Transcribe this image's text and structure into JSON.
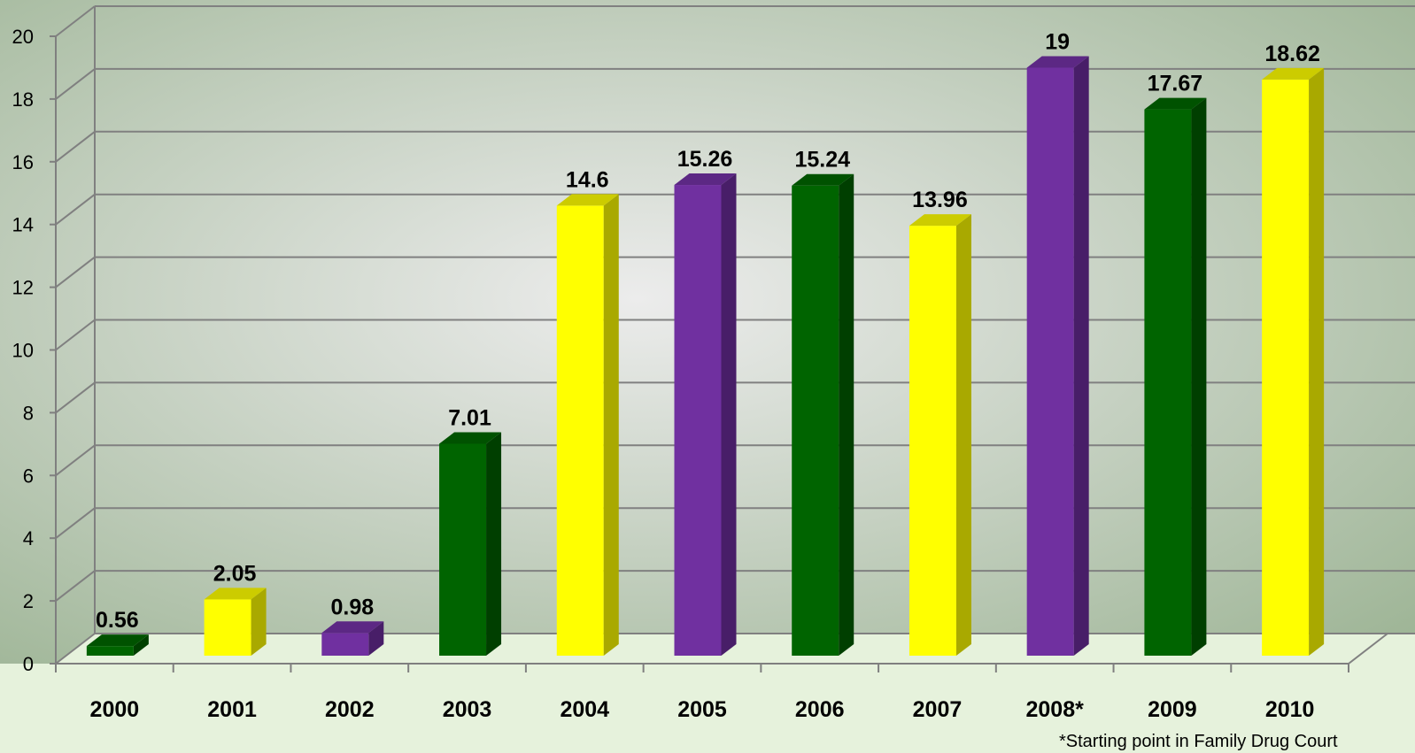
{
  "chart_data": {
    "type": "bar",
    "title": "",
    "xlabel": "",
    "ylabel": "",
    "categories": [
      "2000",
      "2001",
      "2002",
      "2003",
      "2004",
      "2005",
      "2006",
      "2007",
      "2008*",
      "2009",
      "2010"
    ],
    "values": [
      0.56,
      2.05,
      0.98,
      7.01,
      14.6,
      15.26,
      15.24,
      13.96,
      19,
      17.67,
      18.62
    ],
    "data_labels": [
      "0.56",
      "2.05",
      "0.98",
      "7.01",
      "14.6",
      "15.26",
      "15.24",
      "13.96",
      "19",
      "17.67",
      "18.62"
    ],
    "bar_colors": [
      "green",
      "yellow",
      "purple",
      "green",
      "yellow",
      "purple",
      "green",
      "yellow",
      "purple",
      "green",
      "yellow"
    ],
    "ylim": [
      0,
      20
    ],
    "yticks": [
      "0",
      "2",
      "4",
      "6",
      "8",
      "10",
      "12",
      "14",
      "16",
      "18",
      "20"
    ],
    "grid": true,
    "legend": "none",
    "three_d": true
  },
  "colors": {
    "green": {
      "front": "#006400",
      "side": "#003f00",
      "top": "#005200"
    },
    "yellow": {
      "front": "#ffff00",
      "side": "#a9a900",
      "top": "#cccc00"
    },
    "purple": {
      "front": "#7030a0",
      "side": "#481e68",
      "top": "#5c2884"
    },
    "plot_center": "#ececec",
    "plot_edge": "#9eb596",
    "floor": "#e6f2dc",
    "grid": "#808080"
  },
  "footnote": "*Starting point in Family Drug Court"
}
